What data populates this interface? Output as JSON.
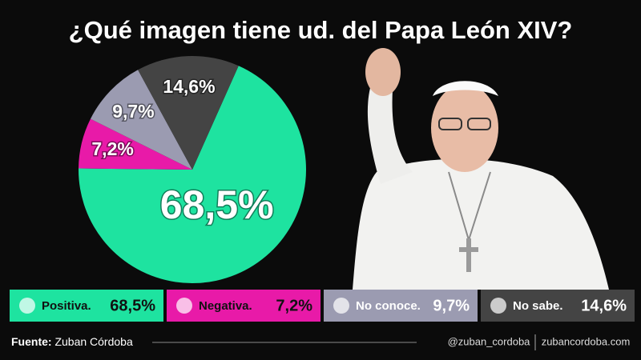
{
  "chart_data": {
    "type": "pie",
    "title": "¿Qué imagen tiene ud. del Papa León XIV?",
    "categories": [
      "Positiva.",
      "Negativa.",
      "No conoce.",
      "No sabe."
    ],
    "values": [
      68.5,
      7.2,
      9.7,
      14.6
    ],
    "value_labels": [
      "68,5%",
      "7,2%",
      "9,7%",
      "14,6%"
    ],
    "colors": [
      "#1ee3a0",
      "#e81aa8",
      "#9b9bb1",
      "#444444"
    ]
  },
  "footer": {
    "source_label": "Fuente:",
    "source": "Zuban Córdoba",
    "handle": "@zuban_cordoba",
    "website": "zubancordoba.com"
  }
}
